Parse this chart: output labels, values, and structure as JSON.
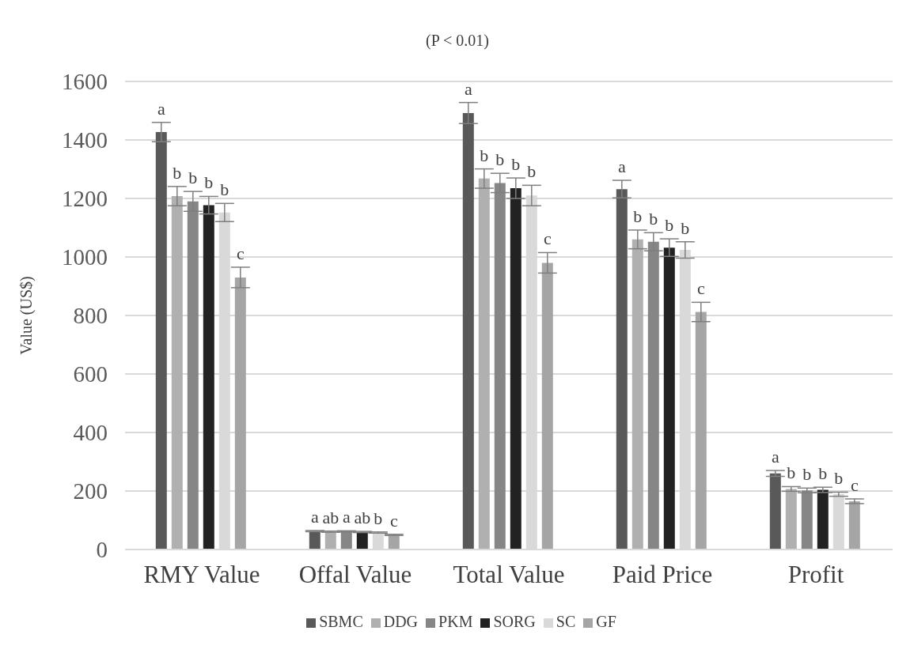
{
  "chart_data": {
    "type": "bar",
    "title": "(P < 0.01)",
    "ylabel": "Value (US$)",
    "categories": [
      "RMY Value",
      "Offal Value",
      "Total Value",
      "Paid Price",
      "Profit"
    ],
    "series": [
      {
        "name": "SBMC",
        "color": "#595959",
        "values": [
          1427,
          63,
          1492,
          1232,
          260
        ],
        "errors": [
          33,
          2,
          36,
          30,
          10
        ],
        "value_labels": [
          "a",
          "a",
          "a",
          "a",
          "a"
        ]
      },
      {
        "name": "DDG",
        "color": "#b0b0b0",
        "values": [
          1208,
          61,
          1268,
          1060,
          207
        ],
        "errors": [
          33,
          2,
          33,
          32,
          8
        ],
        "value_labels": [
          "b",
          "ab",
          "b",
          "b",
          "b"
        ]
      },
      {
        "name": "PKM",
        "color": "#868686",
        "values": [
          1190,
          62,
          1253,
          1052,
          202
        ],
        "errors": [
          34,
          2,
          33,
          31,
          8
        ],
        "value_labels": [
          "b",
          "a",
          "b",
          "b",
          "b"
        ]
      },
      {
        "name": "SORG",
        "color": "#222222",
        "values": [
          1177,
          60,
          1235,
          1032,
          204
        ],
        "errors": [
          30,
          2,
          35,
          30,
          9
        ],
        "value_labels": [
          "b",
          "ab",
          "b",
          "b",
          "b"
        ]
      },
      {
        "name": "SC",
        "color": "#d9d9d9",
        "values": [
          1152,
          58,
          1210,
          1024,
          189
        ],
        "errors": [
          31,
          2,
          35,
          28,
          7
        ],
        "value_labels": [
          "b",
          "b",
          "b",
          "b",
          "b"
        ]
      },
      {
        "name": "GF",
        "color": "#a5a5a5",
        "values": [
          930,
          50,
          980,
          812,
          165
        ],
        "errors": [
          35,
          2,
          35,
          33,
          8
        ],
        "value_labels": [
          "c",
          "c",
          "c",
          "c",
          "c"
        ]
      }
    ],
    "ylim": [
      0,
      1600
    ],
    "yticks": [
      0,
      200,
      400,
      600,
      800,
      1000,
      1200,
      1400,
      1600
    ],
    "grid": "y",
    "legend": "bottom"
  }
}
